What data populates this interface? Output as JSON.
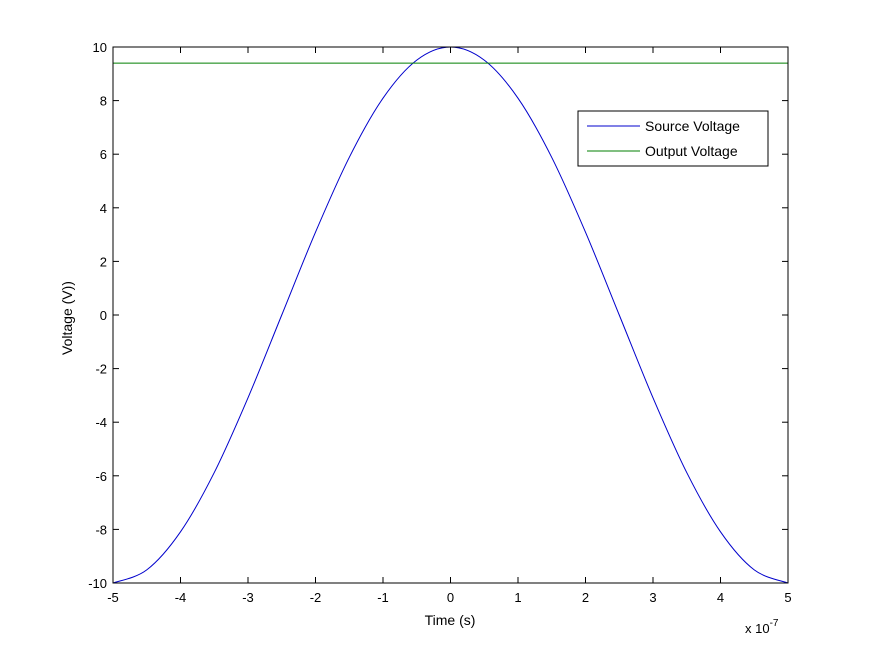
{
  "chart_data": {
    "type": "line",
    "title": "",
    "xlabel": "Time (s)",
    "ylabel": "Voltage (V))",
    "x_multiplier_label": "x 10",
    "x_multiplier_exponent": "-7",
    "xlim": [
      -5,
      5
    ],
    "ylim": [
      -10,
      10
    ],
    "x_ticks": [
      -5,
      -4,
      -3,
      -2,
      -1,
      0,
      1,
      2,
      3,
      4,
      5
    ],
    "y_ticks": [
      -10,
      -8,
      -6,
      -4,
      -2,
      0,
      2,
      4,
      6,
      8,
      10
    ],
    "x_tick_labels": [
      "-5",
      "-4",
      "-3",
      "-2",
      "-1",
      "0",
      "1",
      "2",
      "3",
      "4",
      "5"
    ],
    "y_tick_labels": [
      "-10",
      "-8",
      "-6",
      "-4",
      "-2",
      "0",
      "2",
      "4",
      "6",
      "8",
      "10"
    ],
    "grid": false,
    "legend_position": "top-right",
    "series": [
      {
        "name": "Source Voltage",
        "color": "#0000cc",
        "x": [
          -5,
          -4.5,
          -4,
          -3.5,
          -3,
          -2.5,
          -2,
          -1.5,
          -1,
          -0.5,
          0,
          0.5,
          1,
          1.5,
          2,
          2.5,
          3,
          3.5,
          4,
          4.5,
          5
        ],
        "y": [
          -10,
          -9.51,
          -8.09,
          -5.88,
          -3.09,
          0,
          3.09,
          5.88,
          8.09,
          9.51,
          10,
          9.51,
          8.09,
          5.88,
          3.09,
          0,
          -3.09,
          -5.88,
          -8.09,
          -9.51,
          -10
        ]
      },
      {
        "name": "Output Voltage",
        "color": "#007f00",
        "x": [
          -5,
          5
        ],
        "y": [
          9.4,
          9.4
        ]
      }
    ]
  }
}
